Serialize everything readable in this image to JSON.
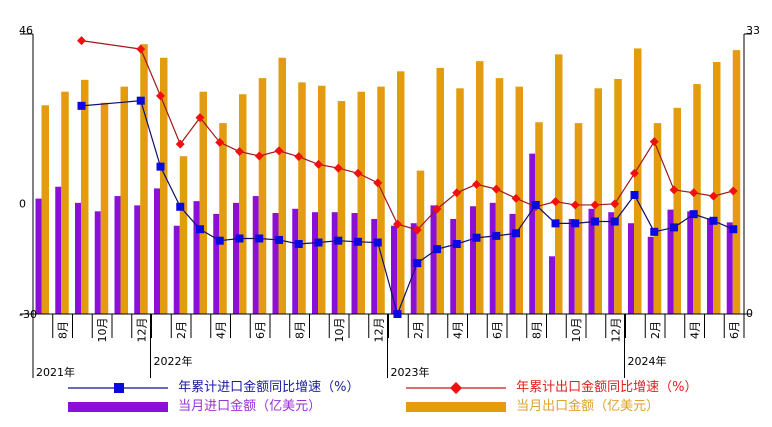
{
  "chart_data": {
    "type": "bar+line",
    "title": "",
    "months": [
      "2021-07",
      "2021-08",
      "2021-09",
      "2021-10",
      "2021-11",
      "2021-12",
      "2022-01",
      "2022-02",
      "2022-03",
      "2022-04",
      "2022-05",
      "2022-06",
      "2022-07",
      "2022-08",
      "2022-09",
      "2022-10",
      "2022-11",
      "2022-12",
      "2023-01",
      "2023-02",
      "2023-03",
      "2023-04",
      "2023-05",
      "2023-06",
      "2023-07",
      "2023-08",
      "2023-09",
      "2023-10",
      "2023-11",
      "2023-12",
      "2024-01",
      "2024-02",
      "2024-03",
      "2024-04",
      "2024-05",
      "2024-06"
    ],
    "x_tick_labels": [
      "",
      "8月",
      "",
      "10月",
      "",
      "12月",
      "",
      "2月",
      "",
      "4月",
      "",
      "6月",
      "",
      "8月",
      "",
      "10月",
      "",
      "12月",
      "",
      "2月",
      "",
      "4月",
      "",
      "6月",
      "",
      "8月",
      "",
      "10月",
      "",
      "12月",
      "",
      "2月",
      "",
      "4月",
      "",
      "6月"
    ],
    "year_labels": [
      {
        "label": "2021年",
        "start_index": 0
      },
      {
        "label": "2022年",
        "start_index": 6
      },
      {
        "label": "2023年",
        "start_index": 18
      },
      {
        "label": "2024年",
        "start_index": 30
      }
    ],
    "left_axis": {
      "ylim": [
        -30,
        46
      ],
      "ticks": [
        "46",
        "0",
        "-30"
      ],
      "tick_values": [
        46,
        0,
        -30
      ],
      "unit": "%"
    },
    "right_axis": {
      "ylim": [
        0,
        33
      ],
      "ticks": [
        "33",
        "0"
      ],
      "tick_values": [
        33,
        0
      ],
      "unit": "亿美元"
    },
    "series": [
      {
        "name": "当月进口金额（亿美元）",
        "type": "bar",
        "axis": "right",
        "color": "#8a10d8",
        "values": [
          13.6,
          15.0,
          13.1,
          12.1,
          13.9,
          12.8,
          14.8,
          10.4,
          13.3,
          11.8,
          13.1,
          13.9,
          11.9,
          12.4,
          12.0,
          12.0,
          11.9,
          11.2,
          10.4,
          10.7,
          12.8,
          11.2,
          12.7,
          13.1,
          11.8,
          18.9,
          6.8,
          11.2,
          12.4,
          12.0,
          10.7,
          9.1,
          12.3,
          12.1,
          11.3,
          10.8
        ]
      },
      {
        "name": "当月出口金额（亿美元）",
        "type": "bar",
        "axis": "right",
        "color": "#e39c10",
        "values": [
          24.6,
          26.2,
          27.6,
          24.9,
          26.8,
          31.8,
          30.2,
          18.6,
          26.2,
          22.5,
          25.9,
          27.8,
          30.2,
          27.3,
          26.9,
          25.1,
          26.2,
          26.8,
          28.6,
          16.9,
          29.0,
          26.6,
          29.8,
          27.8,
          26.8,
          22.6,
          30.6,
          22.5,
          26.6,
          27.7,
          31.3,
          22.5,
          24.3,
          27.1,
          29.7,
          31.1
        ]
      },
      {
        "name": "年累计进口金额同比增速（%）",
        "type": "line",
        "axis": "left",
        "color": "#0a0ae0",
        "line_color": "#10106a",
        "marker": "square",
        "values": [
          null,
          null,
          26.5,
          null,
          null,
          27.9,
          10.0,
          -0.9,
          -7.0,
          -10.1,
          -9.5,
          -9.5,
          -9.9,
          -11.0,
          -10.6,
          -10.1,
          -10.4,
          -10.6,
          -30.0,
          -16.2,
          -12.4,
          -11.0,
          -9.3,
          -8.8,
          -8.1,
          -0.4,
          -5.4,
          -5.4,
          -4.9,
          -4.9,
          2.3,
          -7.7,
          -6.5,
          -2.9,
          -4.7,
          -7.0
        ]
      },
      {
        "name": "年累计出口金额同比增速（%）",
        "type": "line",
        "axis": "left",
        "color": "#f01010",
        "line_color": "#a01818",
        "marker": "diamond",
        "values": [
          null,
          null,
          44.2,
          null,
          null,
          41.9,
          29.2,
          16.1,
          23.3,
          16.6,
          14.1,
          12.9,
          14.3,
          12.7,
          10.6,
          9.6,
          8.2,
          5.6,
          -5.6,
          -7.2,
          -1.5,
          2.9,
          5.2,
          3.9,
          1.4,
          -0.9,
          0.5,
          -0.4,
          -0.4,
          -0.1,
          8.2,
          16.8,
          3.7,
          2.9,
          2.0,
          3.4
        ]
      }
    ],
    "legend": {
      "placement": "bottom",
      "entries": [
        {
          "label": "年累计进口金额同比增速（%）",
          "color": "#1a1aa8"
        },
        {
          "label": "年累计出口金额同比增速（%）",
          "color": "#e02020"
        },
        {
          "label": "当月进口金额（亿美元）",
          "color": "#9a30d8"
        },
        {
          "label": "当月出口金额（亿美元）",
          "color": "#e0a030"
        }
      ]
    }
  }
}
